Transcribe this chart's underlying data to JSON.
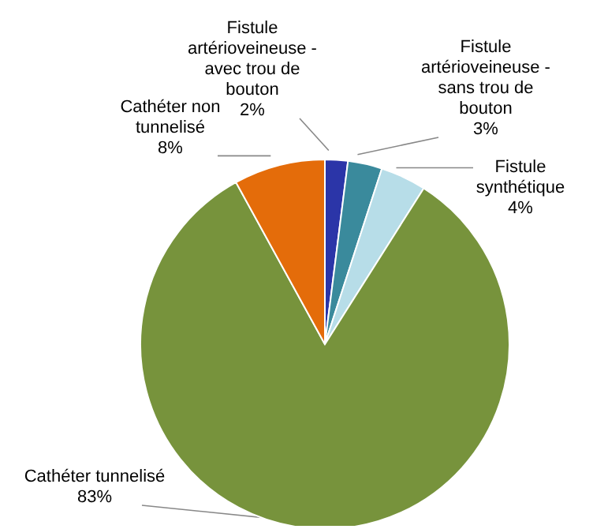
{
  "chart_data": {
    "type": "pie",
    "categories": [
      "Fistule artérioveineuse - avec trou de bouton",
      "Fistule artérioveineuse - sans trou de bouton",
      "Fistule synthétique",
      "Cathéter tunnelisé",
      "Cathéter non tunnelisé"
    ],
    "values": [
      2,
      3,
      4,
      83,
      8
    ],
    "colors": [
      "#2b35a8",
      "#3a8a9c",
      "#b7dde8",
      "#77933c",
      "#e46c0a"
    ],
    "value_labels": [
      "2%",
      "3%",
      "4%",
      "83%",
      "8%"
    ]
  }
}
